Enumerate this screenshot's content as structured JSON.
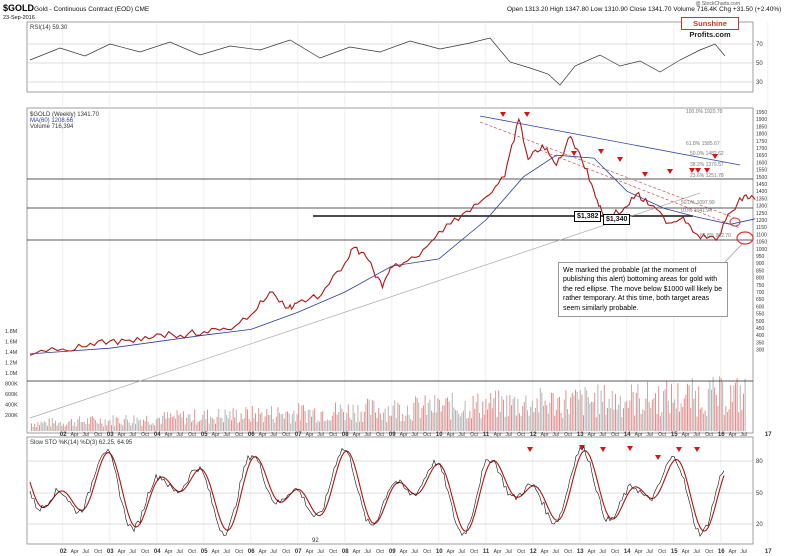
{
  "header": {
    "symbol": "$GOLD",
    "subtitle": "Gold - Continuous Contract (EOD) CME",
    "date": "23-Sep-2016",
    "ohlc": "Open 1313.20  High 1347.80  Low 1310.90  Close 1341.70  Volume 716.4K  Chg +31.50 (+2.40%)",
    "watermark": "@ StockCharts.com",
    "logo_a": "Sunshine",
    "logo_b": "Profits.com"
  },
  "rsi_panel": {
    "label": "RSI(14) 59.30",
    "ticks": [
      "70",
      "50",
      "30"
    ]
  },
  "price_panel": {
    "legend": [
      "$GOLD (Weekly) 1341.70",
      "MA(60) 1208.66",
      "Volume 716,394"
    ],
    "ticks": [
      "1950",
      "1900",
      "1850",
      "1800",
      "1750",
      "1700",
      "1650",
      "1600",
      "1550",
      "1500",
      "1450",
      "1400",
      "1350",
      "1300",
      "1250",
      "1200",
      "1150",
      "1100",
      "1050",
      "1000",
      "950",
      "900",
      "850",
      "800",
      "750",
      "700",
      "650",
      "600",
      "550",
      "500",
      "450",
      "400",
      "350",
      "300"
    ],
    "volume_ticks": [
      "1.8M",
      "1.6M",
      "1.4M",
      "1.2M",
      "1.0M",
      "800K",
      "600K",
      "400K",
      "200K"
    ],
    "fib_labels": {
      "top": "100.0% 1920.70",
      "f1": "61.8% 1585.67",
      "f2": "50.0% 1482.62",
      "f3": "38.2% 1379.57",
      "f4": "23.6% 1251.78",
      "b1": "50.0% 1097.99",
      "b2": "0.0% 1041.94",
      "b3": "61.8% 902.70"
    },
    "price_labels": [
      "$1,382",
      "$1,340"
    ],
    "note": "We marked the probable (at the moment of publishing this alert) bottoming areas for gold with the red ellipse. The move below $1000 will likely be rather temporary. At this time, both target areas seem similarly probable."
  },
  "stoch_panel": {
    "label": "Slow STO %K(14) %D(3) 62.25, 64.95",
    "ticks": [
      "80",
      "50",
      "20"
    ],
    "bottom_label": "92"
  },
  "xaxis": {
    "years": [
      "02",
      "03",
      "04",
      "05",
      "06",
      "07",
      "08",
      "09",
      "10",
      "11",
      "12",
      "13",
      "14",
      "15",
      "16",
      "17"
    ],
    "sub": [
      "Apr",
      "Jul",
      "Oct"
    ]
  },
  "chart_data": {
    "type": "line",
    "title": "$GOLD (Weekly)",
    "x_unit": "year",
    "y_unit": "USD",
    "ylim": [
      250,
      1950
    ],
    "series": [
      {
        "name": "$GOLD (Weekly)",
        "x": [
          2001.3,
          2002,
          2002.5,
          2003,
          2003.5,
          2004,
          2004.5,
          2005,
          2005.5,
          2006,
          2006.4,
          2006.8,
          2007,
          2007.5,
          2008,
          2008.2,
          2008.5,
          2008.8,
          2009,
          2009.5,
          2010,
          2010.5,
          2011,
          2011.4,
          2011.7,
          2011.9,
          2012.2,
          2012.5,
          2012.8,
          2013,
          2013.3,
          2013.5,
          2013.9,
          2014.2,
          2014.5,
          2014.9,
          2015.2,
          2015.5,
          2015.9,
          2016.2,
          2016.5,
          2016.73
        ],
        "y": [
          260,
          305,
          320,
          360,
          350,
          410,
          400,
          425,
          440,
          540,
          700,
          590,
          630,
          680,
          900,
          1010,
          920,
          730,
          870,
          940,
          1120,
          1240,
          1360,
          1500,
          1900,
          1620,
          1720,
          1580,
          1780,
          1660,
          1400,
          1230,
          1260,
          1380,
          1300,
          1180,
          1220,
          1100,
          1060,
          1250,
          1370,
          1341.7
        ]
      },
      {
        "name": "MA(60)",
        "x": [
          2001.3,
          2003,
          2005,
          2006,
          2007,
          2008,
          2009,
          2010,
          2011,
          2011.8,
          2012.5,
          2013.3,
          2014,
          2014.8,
          2015.5,
          2016.2,
          2016.73
        ],
        "y": [
          270,
          310,
          400,
          440,
          560,
          700,
          880,
          930,
          1200,
          1500,
          1650,
          1630,
          1400,
          1280,
          1220,
          1170,
          1208.66
        ]
      }
    ]
  }
}
